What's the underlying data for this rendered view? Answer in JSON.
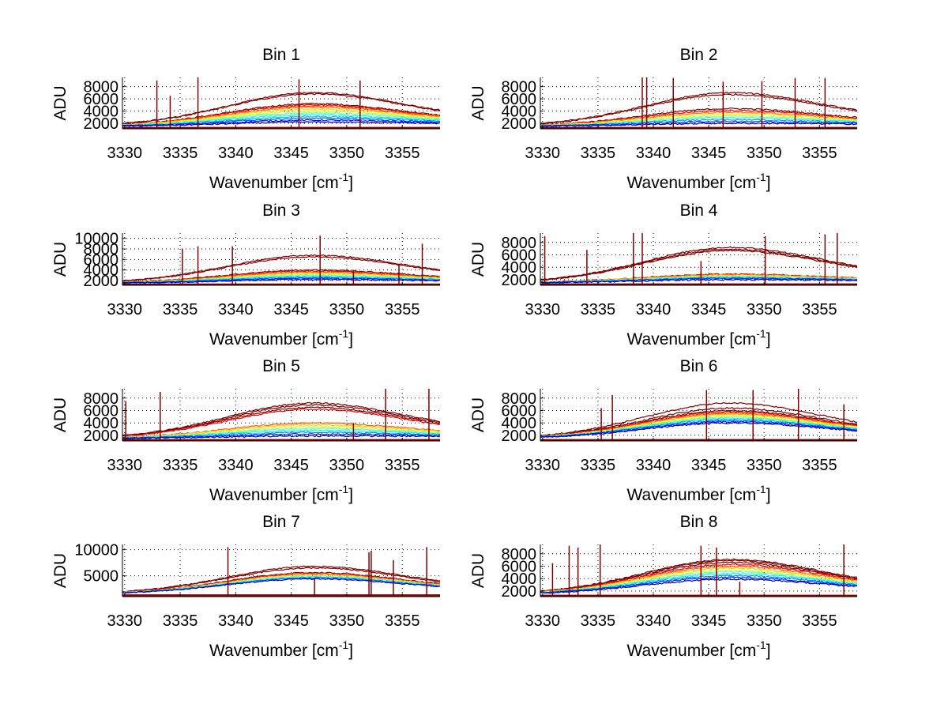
{
  "figure": {
    "background": "#ffffff",
    "spike_color": "#800000",
    "colormap": "jet",
    "layout": "4 rows x 2 columns"
  },
  "chart_data": [
    {
      "type": "line",
      "title": "Bin 1",
      "xlabel": "Wavenumber [cm",
      "xlabel_sup": "-1",
      "xlabel_end": "]",
      "ylabel": "ADU",
      "xlim": [
        3329.8,
        3358.4
      ],
      "ylim": [
        1100,
        9500
      ],
      "xticks": [
        3330,
        3335,
        3340,
        3345,
        3350,
        3355
      ],
      "yticks": [
        2000,
        4000,
        6000,
        8000
      ],
      "ytick_labels": [
        "2000",
        "4000",
        "6000",
        "8000"
      ],
      "grid": true,
      "series_profile": {
        "start": 1500,
        "peak_center": 3347,
        "width": 11,
        "end_level": 3300
      },
      "envelope_peaks": [
        7000,
        6800,
        5200,
        5000,
        4800,
        4600,
        4300,
        4000,
        3700,
        3400,
        3100,
        2800,
        2500,
        2200
      ],
      "baseline": 1250,
      "spikes": [
        3332.9,
        3334.1,
        3336.6,
        3345.7,
        3351.2
      ],
      "spike_heights": [
        9000,
        6500,
        9500,
        9200,
        9000
      ]
    },
    {
      "type": "line",
      "title": "Bin 2",
      "xlabel": "Wavenumber [cm",
      "xlabel_sup": "-1",
      "xlabel_end": "]",
      "ylabel": "ADU",
      "xlim": [
        3329.8,
        3358.4
      ],
      "ylim": [
        1100,
        9500
      ],
      "xticks": [
        3330,
        3335,
        3340,
        3345,
        3350,
        3355
      ],
      "yticks": [
        2000,
        4000,
        6000,
        8000
      ],
      "ytick_labels": [
        "2000",
        "4000",
        "6000",
        "8000"
      ],
      "grid": true,
      "series_profile": {
        "start": 1500,
        "peak_center": 3347,
        "width": 11,
        "end_level": 3300
      },
      "envelope_peaks": [
        7000,
        6700,
        4400,
        4100,
        3800,
        3500,
        3200,
        2900,
        2600,
        2300,
        2000
      ],
      "baseline": 1250,
      "spikes": [
        3339.0,
        3339.4,
        3341.8,
        3346.3,
        3349.8,
        3352.8,
        3355.5
      ],
      "spike_heights": [
        9500,
        9500,
        9400,
        8800,
        8900,
        9400,
        9400
      ]
    },
    {
      "type": "line",
      "title": "Bin 3",
      "xlabel": "Wavenumber [cm",
      "xlabel_sup": "-1",
      "xlabel_end": "]",
      "ylabel": "ADU",
      "xlim": [
        3329.8,
        3358.4
      ],
      "ylim": [
        1100,
        11000
      ],
      "xticks": [
        3330,
        3335,
        3340,
        3345,
        3350,
        3355
      ],
      "yticks": [
        2000,
        4000,
        6000,
        8000,
        10000
      ],
      "ytick_labels": [
        "2000",
        "4000",
        "6000",
        "8000",
        "10000"
      ],
      "grid": true,
      "series_profile": {
        "start": 1500,
        "peak_center": 3347,
        "width": 11,
        "end_level": 3200
      },
      "envelope_peaks": [
        6800,
        6500,
        4000,
        3800,
        3600,
        3400,
        3200,
        3000,
        2800,
        2600,
        2400,
        2200
      ],
      "baseline": 1250,
      "spikes": [
        3335.2,
        3336.6,
        3339.7,
        3347.6,
        3350.6,
        3354.7,
        3356.8
      ],
      "spike_heights": [
        8000,
        8500,
        8500,
        10500,
        4000,
        5000,
        9000
      ]
    },
    {
      "type": "line",
      "title": "Bin 4",
      "xlabel": "Wavenumber [cm",
      "xlabel_sup": "-1",
      "xlabel_end": "]",
      "ylabel": "ADU",
      "xlim": [
        3329.8,
        3358.4
      ],
      "ylim": [
        1100,
        9500
      ],
      "xticks": [
        3330,
        3335,
        3340,
        3345,
        3350,
        3355
      ],
      "yticks": [
        2000,
        4000,
        6000,
        8000
      ],
      "ytick_labels": [
        "2000",
        "4000",
        "6000",
        "8000"
      ],
      "grid": true,
      "series_profile": {
        "start": 1500,
        "peak_center": 3347,
        "width": 11,
        "end_level": 3300
      },
      "envelope_peaks": [
        7200,
        6900,
        6700,
        2900,
        2800,
        2700,
        2600,
        2500,
        2400,
        2300,
        2200,
        2000
      ],
      "baseline": 1250,
      "spikes": [
        3330.2,
        3334.0,
        3338.2,
        3339.0,
        3344.3,
        3350.1,
        3355.5,
        3356.6
      ],
      "spike_heights": [
        9000,
        6800,
        9500,
        9500,
        5000,
        9000,
        9300,
        9500
      ]
    },
    {
      "type": "line",
      "title": "Bin 5",
      "xlabel": "Wavenumber [cm",
      "xlabel_sup": "-1",
      "xlabel_end": "]",
      "ylabel": "ADU",
      "xlim": [
        3329.8,
        3358.4
      ],
      "ylim": [
        1100,
        9500
      ],
      "xticks": [
        3330,
        3335,
        3340,
        3345,
        3350,
        3355
      ],
      "yticks": [
        2000,
        4000,
        6000,
        8000
      ],
      "ytick_labels": [
        "2000",
        "4000",
        "6000",
        "8000"
      ],
      "grid": true,
      "series_profile": {
        "start": 1500,
        "peak_center": 3347,
        "width": 11,
        "end_level": 3300
      },
      "envelope_peaks": [
        7200,
        6900,
        6500,
        6200,
        4000,
        3700,
        3400,
        3100,
        2800,
        2500,
        2200,
        1900
      ],
      "baseline": 1250,
      "spikes": [
        3330.1,
        3333.2,
        3350.6,
        3353.5,
        3357.4
      ],
      "spike_heights": [
        7500,
        9000,
        4000,
        9500,
        9500
      ]
    },
    {
      "type": "line",
      "title": "Bin 6",
      "xlabel": "Wavenumber [cm",
      "xlabel_sup": "-1",
      "xlabel_end": "]",
      "ylabel": "ADU",
      "xlim": [
        3329.8,
        3358.4
      ],
      "ylim": [
        1100,
        9500
      ],
      "xticks": [
        3330,
        3335,
        3340,
        3345,
        3350,
        3355
      ],
      "yticks": [
        2000,
        4000,
        6000,
        8000
      ],
      "ytick_labels": [
        "2000",
        "4000",
        "6000",
        "8000"
      ],
      "grid": true,
      "series_profile": {
        "start": 1500,
        "peak_center": 3347,
        "width": 11,
        "end_level": 3000
      },
      "envelope_peaks": [
        7200,
        6400,
        6000,
        5800,
        5600,
        5400,
        5200,
        5000,
        4800,
        4600,
        4400,
        4200,
        4000
      ],
      "baseline": 1250,
      "spikes": [
        3335.3,
        3336.3,
        3344.8,
        3349.0,
        3353.1,
        3357.2
      ],
      "spike_heights": [
        6400,
        8500,
        9300,
        9300,
        9500,
        7000
      ]
    },
    {
      "type": "line",
      "title": "Bin 7",
      "xlabel": "Wavenumber [cm",
      "xlabel_sup": "-1",
      "xlabel_end": "]",
      "ylabel": "ADU",
      "xlim": [
        3329.8,
        3358.4
      ],
      "ylim": [
        1000,
        11000
      ],
      "xticks": [
        3330,
        3335,
        3340,
        3345,
        3350,
        3355
      ],
      "yticks": [
        5000,
        10000
      ],
      "ytick_labels": [
        "5000",
        "10000"
      ],
      "grid": true,
      "series_profile": {
        "start": 1500,
        "peak_center": 3347,
        "width": 11,
        "end_level": 3200
      },
      "envelope_peaks": [
        6800,
        6500,
        5600,
        5400,
        5200,
        5000,
        4800,
        4600,
        4400
      ],
      "baseline": 1250,
      "spikes": [
        3339.3,
        3347.1,
        3352.0,
        3352.2,
        3354.2,
        3357.2
      ],
      "spike_heights": [
        10500,
        4500,
        9500,
        9800,
        8000,
        10500
      ]
    },
    {
      "type": "line",
      "title": "Bin 8",
      "xlabel": "Wavenumber [cm",
      "xlabel_sup": "-1",
      "xlabel_end": "]",
      "ylabel": "ADU",
      "xlim": [
        3329.8,
        3358.4
      ],
      "ylim": [
        1100,
        9500
      ],
      "xticks": [
        3330,
        3335,
        3340,
        3345,
        3350,
        3355
      ],
      "yticks": [
        2000,
        4000,
        6000,
        8000
      ],
      "ytick_labels": [
        "2000",
        "4000",
        "6000",
        "8000"
      ],
      "grid": true,
      "series_profile": {
        "start": 1500,
        "peak_center": 3347,
        "width": 11,
        "end_level": 3200
      },
      "envelope_peaks": [
        7100,
        6900,
        6600,
        6300,
        6000,
        5700,
        5400,
        5100,
        4800,
        4500,
        4200,
        3900
      ],
      "baseline": 1250,
      "spikes": [
        3330.9,
        3332.4,
        3333.2,
        3335.2,
        3344.3,
        3345.7,
        3347.8,
        3357.2
      ],
      "spike_heights": [
        6500,
        9300,
        9000,
        9500,
        9300,
        9000,
        3500,
        9500
      ]
    }
  ]
}
